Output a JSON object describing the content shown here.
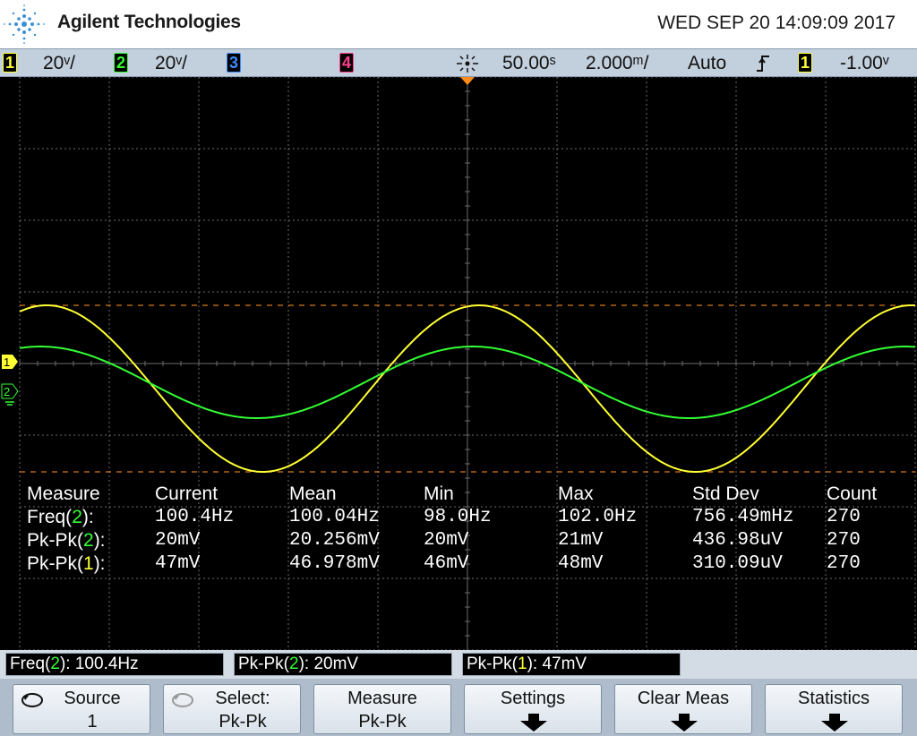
{
  "header": {
    "brand": "Agilent Technologies",
    "datetime": "WED SEP 20 14:09:09 2017"
  },
  "status_bar": {
    "ch1_num": "1",
    "ch1_scale": "20ᵛ/",
    "ch2_num": "2",
    "ch2_scale": "20ᵛ/",
    "ch3_num": "3",
    "ch4_num": "4",
    "trigger_icon": "trigger-position-icon",
    "time_offset": "50.00ˢ",
    "time_scale": "2.000ᵐ/",
    "trigger_mode": "Auto",
    "trigger_slope": "ℱ",
    "trig_source_num": "1",
    "trig_level": "-1.00ᵛ"
  },
  "colors": {
    "ch1": "#ffff33",
    "ch2": "#33ff33",
    "ch3": "#3d8cff",
    "ch4": "#ff3d8c",
    "trigger": "#ff8c1a",
    "grid": "#6b6b6b"
  },
  "channel_markers": {
    "ch1_marker": "1",
    "ch2_marker": "2"
  },
  "measurements": {
    "headers": [
      "Measure",
      "Current",
      "Mean",
      "Min",
      "Max",
      "Std Dev",
      "Count"
    ],
    "rows": [
      {
        "name_pre": "Freq(",
        "ch": "2",
        "name_post": "):",
        "current": "100.4Hz",
        "mean": "100.04Hz",
        "min": "98.0Hz",
        "max": "102.0Hz",
        "std": "756.49mHz",
        "count": "270"
      },
      {
        "name_pre": "Pk-Pk(",
        "ch": "2",
        "name_post": "):",
        "current": "20mV",
        "mean": "20.256mV",
        "min": "20mV",
        "max": "21mV",
        "std": "436.98uV",
        "count": "270"
      },
      {
        "name_pre": "Pk-Pk(",
        "ch": "1",
        "name_post": "):",
        "current": "47mV",
        "mean": "46.978mV",
        "min": "46mV",
        "max": "48mV",
        "std": "310.09uV",
        "count": "270"
      }
    ]
  },
  "readouts": [
    {
      "pre": "Freq(",
      "ch": "2",
      "post": "): 100.4Hz"
    },
    {
      "pre": "Pk-Pk(",
      "ch": "2",
      "post": "): 20mV"
    },
    {
      "pre": "Pk-Pk(",
      "ch": "1",
      "post": "): 47mV"
    }
  ],
  "softkeys": [
    {
      "line1": "Source",
      "line2": "1"
    },
    {
      "line1": "Select:",
      "line2": "Pk-Pk"
    },
    {
      "line1": "Measure",
      "line2": "Pk-Pk"
    },
    {
      "line1": "Settings",
      "line2": ""
    },
    {
      "line1": "Clear Meas",
      "line2": ""
    },
    {
      "line1": "Statistics",
      "line2": ""
    }
  ]
}
